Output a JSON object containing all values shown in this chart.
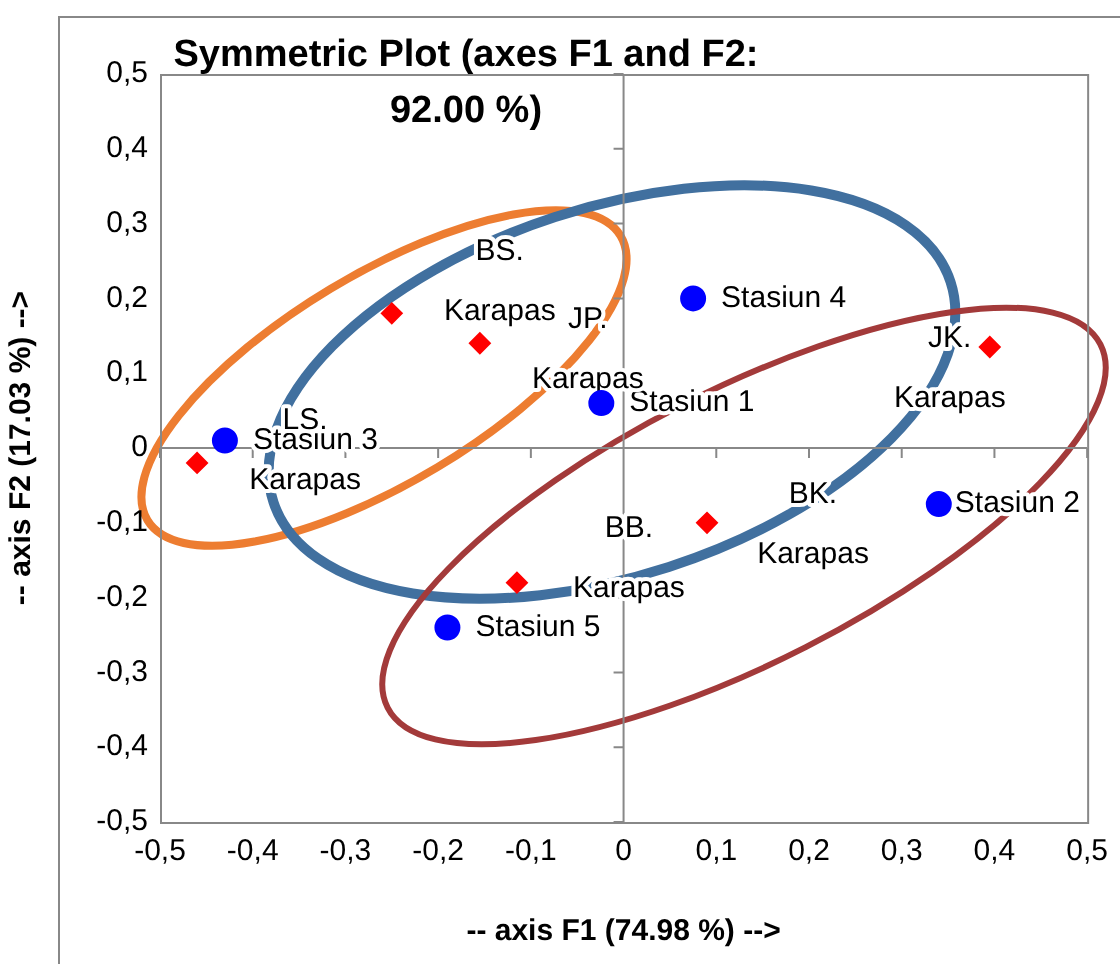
{
  "chart_data": {
    "type": "scatter",
    "title": "Symmetric Plot (axes F1 and F2: 92.00 %)",
    "xlabel": "-- axis F1 (74.98 %) -->",
    "ylabel": "-- axis F2 (17.03 %) -->",
    "series": [
      {
        "color": "#0000ff",
        "marker": "circle",
        "x": [
          0.075,
          -0.024,
          -0.43,
          0.34,
          -0.19
        ],
        "values": [
          0.2,
          0.06,
          0.01,
          -0.075,
          -0.24
        ],
        "value_labels": [
          "Stasiun 4",
          "Stasiun 1",
          "Stasiun 3",
          "Stasiun 2",
          "Stasiun 5"
        ]
      },
      {
        "color": "#ff0000",
        "marker": "diamond",
        "x": [
          -0.25,
          -0.155,
          0.395,
          -0.46,
          0.09,
          -0.115
        ],
        "values": [
          0.18,
          0.14,
          0.135,
          -0.02,
          -0.1,
          -0.18
        ],
        "value_labels": [
          "BS.\nKarapas",
          "JP.\nKarapas",
          "JK.\nKarapas",
          "LS.\nKarapas",
          "BK.\nKarapas",
          "BB.\nKarapas"
        ]
      }
    ],
    "xlim": [
      -0.5,
      0.5
    ],
    "ylim": [
      -0.5,
      0.5
    ],
    "xticks": [
      {
        "value": -0.5,
        "label": "-0,5"
      },
      {
        "value": -0.4,
        "label": "-0,4"
      },
      {
        "value": -0.3,
        "label": "-0,3"
      },
      {
        "value": -0.2,
        "label": "-0,2"
      },
      {
        "value": -0.1,
        "label": "-0,1"
      },
      0,
      {
        "value": 0.1,
        "label": "0,1"
      },
      {
        "value": 0.2,
        "label": "0,2"
      },
      {
        "value": 0.3,
        "label": "0,3"
      },
      {
        "value": 0.4,
        "label": "0,4"
      },
      {
        "value": 0.5,
        "label": "0,5"
      }
    ],
    "yticks": [
      {
        "value": -0.5,
        "label": "-0,5"
      },
      {
        "value": -0.4,
        "label": "-0,4"
      },
      {
        "value": -0.3,
        "label": "-0,3"
      },
      {
        "value": -0.2,
        "label": "-0,2"
      },
      {
        "value": -0.1,
        "label": "-0,1"
      },
      0,
      {
        "value": 0.1,
        "label": "0,1"
      },
      {
        "value": 0.2,
        "label": "0,2"
      },
      {
        "value": 0.3,
        "label": "0,3"
      },
      {
        "value": 0.4,
        "label": "0,4"
      },
      {
        "value": 0.5,
        "label": "0,5"
      }
    ],
    "legend": false
  }
}
